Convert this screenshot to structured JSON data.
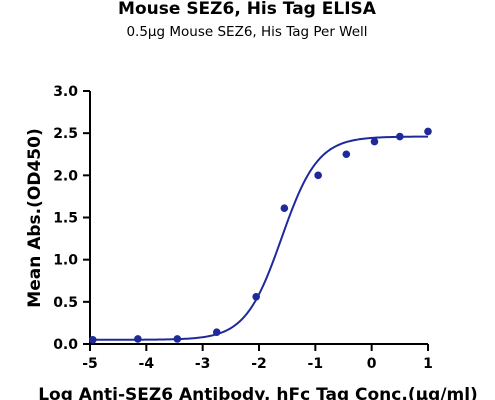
{
  "chart_data": {
    "type": "scatter",
    "title": "Mouse SEZ6, His Tag ELISA",
    "subtitle": "0.5μg Mouse SEZ6, His Tag Per Well",
    "xlabel": "Log Anti-SEZ6 Antibody, hFc Tag Conc.(μg/ml)",
    "ylabel": "Mean Abs.(OD450)",
    "xlim": [
      -5,
      1
    ],
    "ylim": [
      0,
      3.0
    ],
    "xticks": [
      "-5",
      "-4",
      "-3",
      "-2",
      "-1",
      "0",
      "1"
    ],
    "yticks": [
      "0.0",
      "0.5",
      "1.0",
      "1.5",
      "2.0",
      "2.5",
      "3.0"
    ],
    "grid": false,
    "series_color": "#1f2a9a",
    "points": {
      "x": [
        -4.95,
        -4.15,
        -3.45,
        -2.75,
        -2.05,
        -1.55,
        -0.95,
        -0.45,
        0.05,
        0.5,
        1.0
      ],
      "y": [
        0.05,
        0.06,
        0.06,
        0.14,
        0.56,
        1.61,
        2.0,
        2.25,
        2.4,
        2.46,
        2.52
      ]
    },
    "fit": {
      "type": "4PL sigmoid",
      "bottom": 0.05,
      "top": 2.46,
      "logEC50": -1.6,
      "hill": 1.35
    }
  }
}
